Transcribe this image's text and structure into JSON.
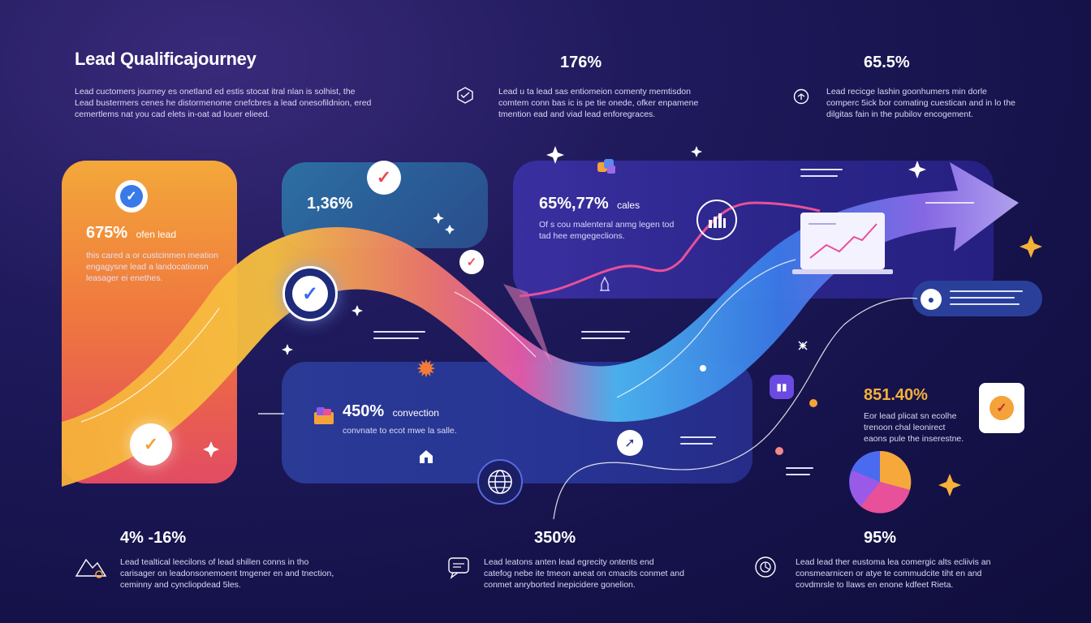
{
  "title": "Lead Qualificajourney",
  "intro": {
    "lines": [
      "Lead cuctomers journey es onetland ed estis stocat itral nlan is solhist, the",
      "Lead bustermers cenes he distormenome cnefcbres a lead onesofildnion, ered",
      "cemertlems nat you cad elets in-oat ad louer elieed."
    ]
  },
  "top_stats": [
    {
      "value": "176%",
      "icon": "digital-cube-icon",
      "lines": [
        "Lead u ta lead sas entiomeion comenty memtisdon",
        "comtem conn bas ic is pe tie onede, ofker enpamene",
        "tmention ead and viad lead enforegraces."
      ]
    },
    {
      "value": "65.5%",
      "icon": "brain-gears-icon",
      "lines": [
        "Lead recicge lashin goonhumers min dorle",
        "comperc 5ick bor comating cuestican and in lo the",
        "dilgitas fain in the pubilov encogement."
      ]
    }
  ],
  "cards": {
    "orange": {
      "value": "675%",
      "suffix": "ofen lead",
      "lines": [
        "this cared a or custcinmen meation",
        "engagysne lead a landocationsn",
        "leasager ei enethes."
      ]
    },
    "teal": {
      "value": "1,36%"
    },
    "purple": {
      "value": "65%,77%",
      "suffix": "cales",
      "lines": [
        "Of s cou malenteral anmg legen tod",
        "tad hee emgegeclions."
      ]
    },
    "blue": {
      "value": "450%",
      "suffix": "convection",
      "lines": [
        "convnate to ecot mwe la salle."
      ]
    },
    "right": {
      "value": "851.40%",
      "lines": [
        "Eor lead plicat sn ecolhe",
        "trenoon chal leonirect",
        "eaons pule the inserestne."
      ]
    }
  },
  "bottom_stats": [
    {
      "value": "4% -16%",
      "icon": "mountain-path-icon",
      "lines": [
        "Lead tealtical leecilons of lead shillen conns in tho",
        "carisager on leadonsonemoent tmgener en and tnection,",
        "ceminny and cyncliopdead 5les."
      ]
    },
    {
      "value": "350%",
      "icon": "chat-bubble-icon",
      "lines": [
        "Lead leatons anten lead egrecity ontents end",
        "catefog nebe ite tmeon aneat on cmacits conmet and",
        "conmet anryborted inepicidere gonelion."
      ]
    },
    {
      "value": "95%",
      "icon": "target-cycle-icon",
      "lines": [
        "Lead lead ther eustoma lea comergic alts ecliivis an",
        "consmearnicen or atye te commudcite tiht en and",
        "covdmrsle to llaws en enone kdfeet Rieta."
      ]
    }
  ],
  "colors": {
    "background": "#15124a",
    "orange": "#f3a83a",
    "pink": "#e84f9a",
    "purple": "#7a5ae8",
    "blue": "#2a3a95",
    "accent_orange": "#f4a23a"
  }
}
